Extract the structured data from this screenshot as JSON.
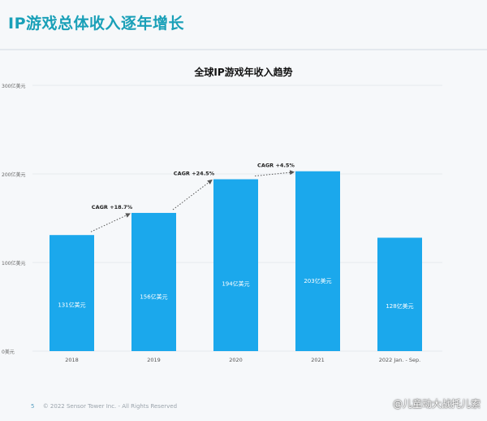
{
  "heading": "IP游戏总体收入逐年增长",
  "chart_data": {
    "type": "bar",
    "title": "全球IP游戏年收入趋势",
    "categories": [
      "2018",
      "2019",
      "2020",
      "2021",
      "2022 Jan. - Sep."
    ],
    "values": [
      131,
      156,
      194,
      203,
      128
    ],
    "data_labels": [
      "131亿美元",
      "156亿美元",
      "194亿美元",
      "203亿美元",
      "128亿美元"
    ],
    "y_ticks": [
      0,
      100,
      200,
      300
    ],
    "y_tick_labels": [
      "0美元",
      "100亿美元",
      "200亿美元",
      "300亿美元"
    ],
    "ylim": [
      0,
      300
    ],
    "grid": true,
    "bar_color": "#1ba8ec",
    "growth_annotations": [
      {
        "from": "2018",
        "to": "2019",
        "label": "CAGR +18.7%"
      },
      {
        "from": "2019",
        "to": "2020",
        "label": "CAGR +24.5%"
      },
      {
        "from": "2020",
        "to": "2021",
        "label": "CAGR +4.5%"
      }
    ]
  },
  "footer": {
    "page_number": "5",
    "copyright": "© 2022 Sensor Tower Inc. - All Rights Reserved"
  },
  "watermark": "@儿童动大战托儿索"
}
